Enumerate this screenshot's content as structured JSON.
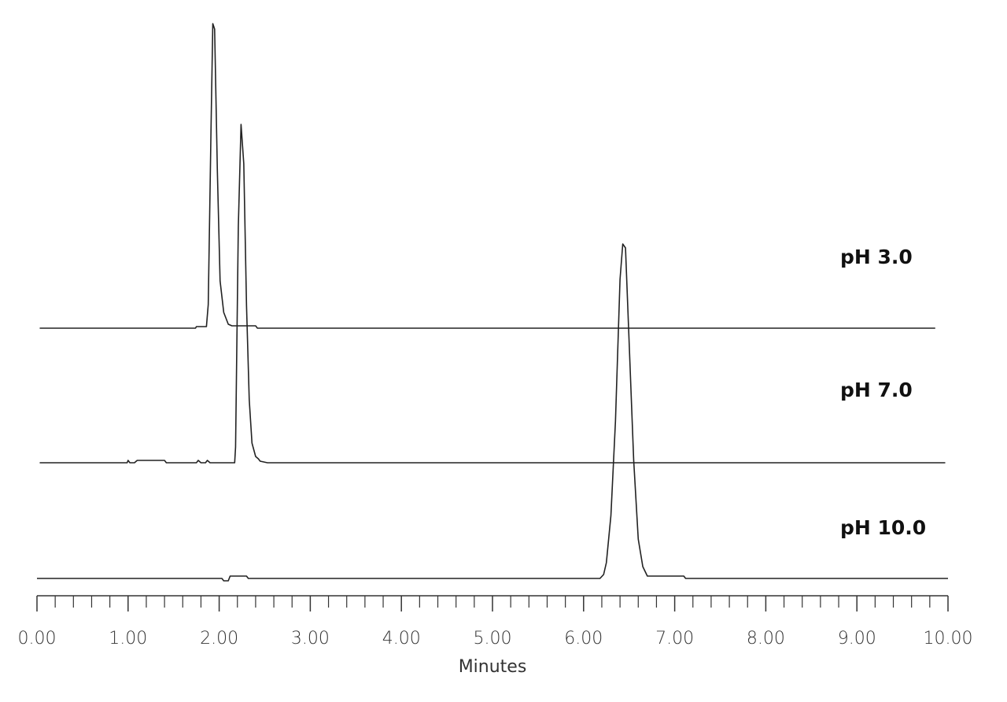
{
  "chart_data": {
    "type": "line",
    "xlabel": "Minutes",
    "xlim": [
      0,
      10
    ],
    "xticks": [
      {
        "value": 0,
        "label": "0.00"
      },
      {
        "value": 1,
        "label": "1.00"
      },
      {
        "value": 2,
        "label": "2.00"
      },
      {
        "value": 3,
        "label": "3.00"
      },
      {
        "value": 4,
        "label": "4.00"
      },
      {
        "value": 5,
        "label": "5.00"
      },
      {
        "value": 6,
        "label": "6.00"
      },
      {
        "value": 7,
        "label": "7.00"
      },
      {
        "value": 8,
        "label": "8.00"
      },
      {
        "value": 9,
        "label": "9.00"
      },
      {
        "value": 10,
        "label": "10.00"
      }
    ],
    "xminorticks": [
      0.2,
      0.4,
      0.6,
      0.8,
      1.2,
      1.4,
      1.6,
      1.8,
      2.2,
      2.4,
      2.6,
      2.8,
      3.2,
      3.4,
      3.6,
      3.8,
      4.2,
      4.4,
      4.6,
      4.8,
      5.2,
      5.4,
      5.6,
      5.8,
      6.2,
      6.4,
      6.6,
      6.8,
      7.2,
      7.4,
      7.6,
      7.8,
      8.2,
      8.4,
      8.6,
      8.8,
      9.2,
      9.4,
      9.6,
      9.8
    ],
    "ylim": [
      0,
      450
    ],
    "series": [
      {
        "name": "pH 3.0",
        "color": "#222222",
        "x": [
          0.03,
          1.74,
          1.75,
          1.86,
          1.88,
          1.91,
          1.93,
          1.95,
          1.98,
          2.01,
          2.05,
          2.1,
          2.14,
          2.4,
          2.42,
          9.86
        ],
        "values": [
          0,
          0,
          2,
          2,
          30,
          250,
          387,
          380,
          200,
          60,
          20,
          5,
          3,
          3,
          0,
          0
        ]
      },
      {
        "name": "pH 7.0",
        "color": "#222222",
        "x": [
          0.03,
          0.99,
          1.0,
          1.02,
          1.07,
          1.1,
          1.4,
          1.42,
          1.75,
          1.77,
          1.8,
          1.85,
          1.87,
          1.9,
          1.95,
          2.17,
          2.18,
          2.21,
          2.24,
          2.27,
          2.3,
          2.33,
          2.36,
          2.4,
          2.43,
          2.45,
          2.53,
          9.97
        ],
        "values": [
          0,
          0,
          3,
          0,
          0,
          3,
          3,
          0,
          0,
          3,
          0,
          0,
          3,
          0,
          0,
          0,
          20,
          300,
          430,
          380,
          200,
          80,
          25,
          8,
          5,
          2,
          0,
          0
        ]
      },
      {
        "name": "pH 10.0",
        "color": "#222222",
        "x": [
          0.0,
          2.03,
          2.05,
          2.1,
          2.12,
          2.3,
          2.32,
          6.18,
          6.22,
          6.25,
          6.3,
          6.35,
          6.4,
          6.43,
          6.46,
          6.5,
          6.55,
          6.6,
          6.65,
          6.7,
          7.1,
          7.12,
          10.0
        ],
        "values": [
          0,
          0,
          -3,
          -3,
          3,
          3,
          0,
          0,
          5,
          20,
          80,
          200,
          380,
          425,
          420,
          300,
          150,
          50,
          15,
          3,
          3,
          0,
          0
        ]
      }
    ]
  }
}
